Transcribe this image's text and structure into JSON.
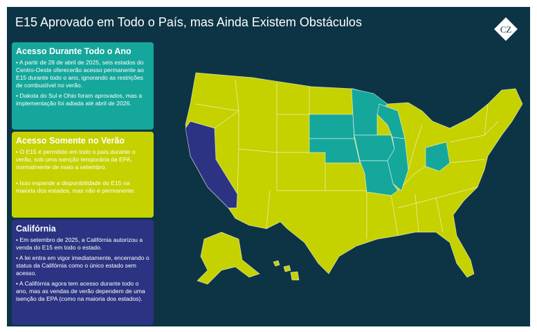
{
  "title": "E15 Aprovado em Todo o País, mas Ainda Existem Obstáculos",
  "logo": "CZ",
  "colors": {
    "year_round": "#15a79c",
    "summer_only": "#c5d200",
    "california": "#2b3382",
    "background": "#0d3445"
  },
  "cards": [
    {
      "heading": "Acesso Durante Todo o Ano",
      "bullets": [
        "• A partir de 28 de abril de 2025, seis estados do Centro-Oeste oferecerão acesso permanente ao E15 durante todo o ano, ignorando as restrições de combustível no verão.",
        "• Dakota do Sul e Ohio foram aprovados, mas a implementação foi adiada até abril de 2026."
      ]
    },
    {
      "heading": "Acesso Somente no Verão",
      "bullets": [
        "• O E15 é permitido em todo o país durante o verão, sob uma isenção temporária da EPA, normalmente de maio a setembro.",
        "• Isso expande a disponibilidade do E15 na maioria dos estados, mas não é permanente."
      ]
    },
    {
      "heading": "Califórnia",
      "bullets": [
        "• Em setembro de 2025, a Califórnia autorizou a venda do E15 em todo o estado.",
        "• A lei entra em vigor imediatamente, encerrando o status da Califórnia como o único estado sem acesso.",
        "• A Califórnia agora tem acesso durante todo o ano, mas as vendas de verão dependem de uma isenção da EPA (como na maioria dos estados)."
      ]
    }
  ],
  "map": {
    "year_round_states": [
      "Minnesota",
      "Iowa",
      "Wisconsin",
      "Illinois",
      "Missouri",
      "Nebraska",
      "South Dakota",
      "Ohio"
    ],
    "california": [
      "California"
    ],
    "summer_only": "all other states"
  }
}
